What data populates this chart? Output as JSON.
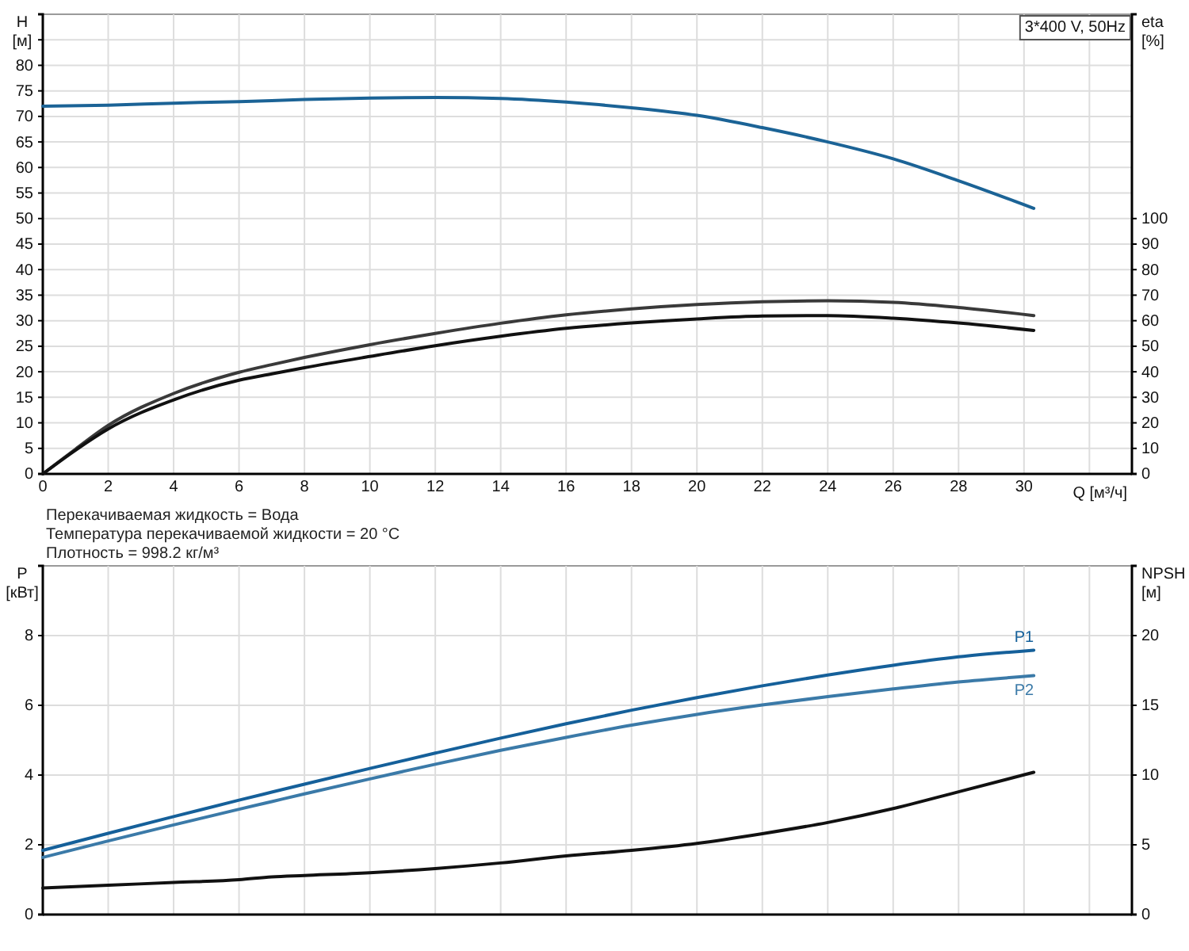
{
  "chart_data": [
    {
      "type": "line",
      "title": "3*400 V, 50Hz",
      "xlabel": "Q [м³/ч]",
      "ylabel": "H [м]",
      "y2label": "eta [%]",
      "annotations": [
        "Перекачиваемая жидкость = Вода",
        "Температура перекачиваемой жидкости = 20 °C",
        "Плотность = 998.2 кг/м³"
      ],
      "xlim": [
        0,
        33.3
      ],
      "xticks": [
        0,
        2,
        4,
        6,
        8,
        10,
        12,
        14,
        16,
        18,
        20,
        22,
        24,
        26,
        28,
        30,
        {
          "value": 32,
          "label": null
        }
      ],
      "ylim": [
        0,
        90
      ],
      "yticks": [
        0,
        5,
        10,
        15,
        20,
        25,
        30,
        35,
        40,
        45,
        50,
        55,
        60,
        65,
        70,
        75,
        80,
        {
          "value": 85,
          "label": null
        }
      ],
      "y2lim": [
        0,
        180
      ],
      "y2ticks": [
        0,
        10,
        20,
        30,
        40,
        50,
        60,
        70,
        80,
        90,
        100
      ],
      "grid": true,
      "series": [
        {
          "color": "#1b6396",
          "x": [
            0,
            2,
            4,
            6,
            7,
            8,
            10,
            12,
            14,
            16,
            17,
            18,
            20,
            22,
            24,
            26,
            28,
            30.3
          ],
          "values": [
            72,
            72.2,
            72.6,
            72.9,
            73.1,
            73.3,
            73.6,
            73.7,
            73.5,
            72.8,
            72.3,
            71.7,
            70.2,
            67.8,
            65.0,
            61.7,
            57.4,
            52.0
          ]
        },
        {
          "color": "#3a3a3a",
          "axis": "y2",
          "x": [
            0,
            1,
            2,
            4,
            6,
            7,
            8,
            10,
            12,
            14,
            16,
            18,
            20,
            22,
            24,
            26,
            28,
            30.3
          ],
          "values": [
            0,
            9.7,
            19,
            31.5,
            39.8,
            42.8,
            45.6,
            50.6,
            55.0,
            59.0,
            62.3,
            64.6,
            66.3,
            67.4,
            67.8,
            67.2,
            65.2,
            62.0
          ]
        },
        {
          "color": "#111111",
          "axis": "y2",
          "x": [
            0,
            1,
            2,
            4,
            6,
            7,
            8,
            10,
            12,
            14,
            16,
            18,
            20,
            22,
            24,
            26,
            28,
            30.3
          ],
          "values": [
            0,
            9.3,
            17.6,
            29,
            36.7,
            39.2,
            41.6,
            46.0,
            50.2,
            53.9,
            57.0,
            59.1,
            60.7,
            61.8,
            62.0,
            61.0,
            59.1,
            56.2
          ]
        }
      ]
    },
    {
      "type": "line",
      "ylabel": "P [кВт]",
      "y2label": "NPSH [м]",
      "xlim": [
        0,
        33.3
      ],
      "xticks": [
        0,
        2,
        4,
        6,
        8,
        10,
        12,
        14,
        16,
        18,
        20,
        22,
        24,
        26,
        28,
        30,
        32
      ],
      "ylim": [
        0,
        10
      ],
      "yticks": [
        0,
        2,
        4,
        6,
        8
      ],
      "y2lim": [
        0,
        25
      ],
      "y2ticks": [
        0,
        5,
        10,
        15,
        20
      ],
      "tick_labels": "y",
      "grid": true,
      "series": [
        {
          "name": "P1",
          "color": "#15609a",
          "x": [
            0,
            2,
            4,
            6,
            7,
            8,
            10,
            12,
            14,
            16,
            18,
            20,
            22,
            24,
            26,
            28,
            30.3
          ],
          "values": [
            1.84,
            2.33,
            2.81,
            3.28,
            3.51,
            3.74,
            4.19,
            4.63,
            5.06,
            5.47,
            5.86,
            6.22,
            6.56,
            6.87,
            7.15,
            7.39,
            7.58
          ]
        },
        {
          "name": "P2",
          "color": "#3b7aa8",
          "x": [
            0,
            2,
            4,
            6,
            7,
            8,
            10,
            12,
            14,
            16,
            18,
            20,
            22,
            24,
            26,
            28,
            30.3
          ],
          "values": [
            1.64,
            2.11,
            2.57,
            3.02,
            3.24,
            3.46,
            3.89,
            4.31,
            4.71,
            5.08,
            5.43,
            5.74,
            6.01,
            6.25,
            6.47,
            6.67,
            6.85
          ]
        },
        {
          "color": "#111111",
          "axis": "y2",
          "x": [
            0,
            2,
            4,
            6,
            7,
            8,
            10,
            12,
            14,
            16,
            18,
            20,
            22,
            24,
            26,
            28,
            30.3
          ],
          "values": [
            1.9,
            2.1,
            2.3,
            2.5,
            2.7,
            2.8,
            3.0,
            3.3,
            3.7,
            4.2,
            4.6,
            5.1,
            5.8,
            6.6,
            7.6,
            8.8,
            10.2
          ]
        }
      ]
    }
  ]
}
